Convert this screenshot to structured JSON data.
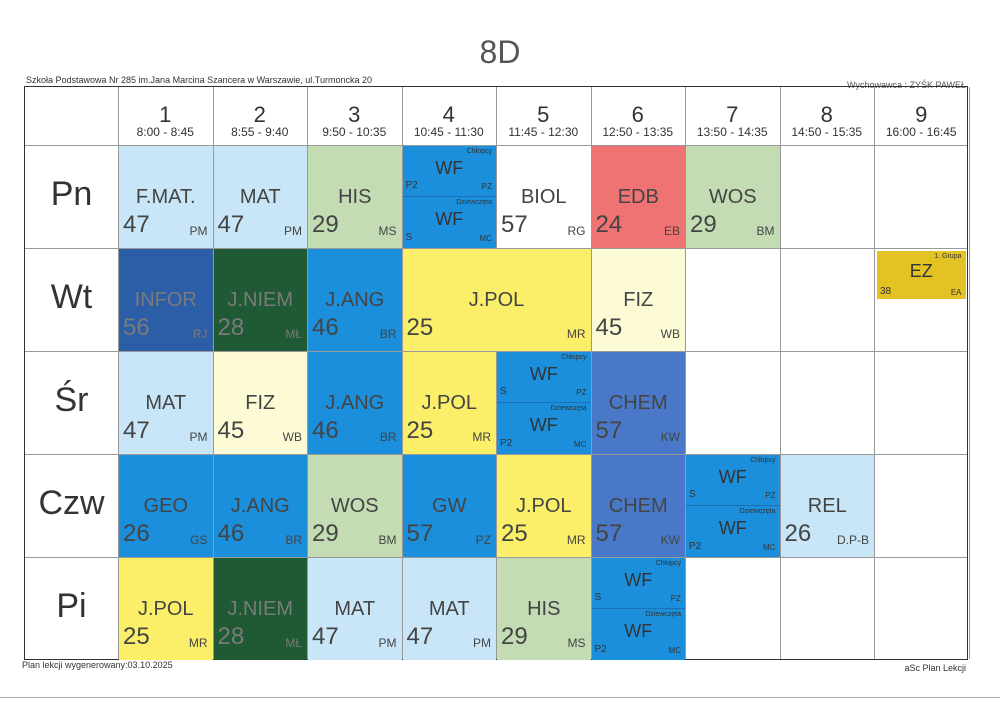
{
  "class_name": "8D",
  "school": "Szkoła Podstawowa Nr 285 im.Jana Marcina Szancera w Warszawie, ul.Turmoncka 20",
  "class_teacher": "Wychowawca : ZYŚK PAWEŁ",
  "footer_left": "Plan lekcji wygenerowany:03.10.2025",
  "footer_right": "aSc Plan Lekcji",
  "periods": [
    {
      "num": "1",
      "time": "8:00 - 8:45"
    },
    {
      "num": "2",
      "time": "8:55 - 9:40"
    },
    {
      "num": "3",
      "time": "9:50 - 10:35"
    },
    {
      "num": "4",
      "time": "10:45 - 11:30"
    },
    {
      "num": "5",
      "time": "11:45 - 12:30"
    },
    {
      "num": "6",
      "time": "12:50 - 13:35"
    },
    {
      "num": "7",
      "time": "13:50 - 14:35"
    },
    {
      "num": "8",
      "time": "14:50 - 15:35"
    },
    {
      "num": "9",
      "time": "16:00 - 16:45"
    }
  ],
  "days": [
    "Pn",
    "Wt",
    "Śr",
    "Czw",
    "Pi"
  ],
  "colors": {
    "light_blue": "#c8e6f7",
    "blue": "#1b8fdc",
    "dark_blue": "#2c5ea8",
    "mid_blue": "#4a78c8",
    "light_green": "#c3dcb4",
    "dark_green": "#1f5a35",
    "yellow": "#fbef6a",
    "cream": "#fdfbd6",
    "red": "#ef7373",
    "gold": "#e3c224",
    "white": "#ffffff"
  },
  "lessons": [
    {
      "day": 0,
      "start": 0,
      "span": 1,
      "subject": "F.MAT.",
      "room": "47",
      "teacher": "PM",
      "color": "light_blue"
    },
    {
      "day": 0,
      "start": 1,
      "span": 1,
      "subject": "MAT",
      "room": "47",
      "teacher": "PM",
      "color": "light_blue"
    },
    {
      "day": 0,
      "start": 2,
      "span": 1,
      "subject": "HIS",
      "room": "29",
      "teacher": "MS",
      "color": "light_green"
    },
    {
      "day": 0,
      "start": 3,
      "span": 1,
      "split": true,
      "color": "blue",
      "top": {
        "subject": "WF",
        "group": "Chłopcy",
        "room": "P2",
        "teacher": "PZ"
      },
      "bottom": {
        "subject": "WF",
        "group": "Dziewczęta",
        "room": "S",
        "teacher": "MC"
      }
    },
    {
      "day": 0,
      "start": 4,
      "span": 1,
      "subject": "BIOL",
      "room": "57",
      "teacher": "RG",
      "color": "white"
    },
    {
      "day": 0,
      "start": 5,
      "span": 1,
      "subject": "EDB",
      "room": "24",
      "teacher": "EB",
      "color": "red"
    },
    {
      "day": 0,
      "start": 6,
      "span": 1,
      "subject": "WOS",
      "room": "29",
      "teacher": "BM",
      "color": "light_green"
    },
    {
      "day": 1,
      "start": 0,
      "span": 1,
      "subject": "INFOR",
      "room": "56",
      "teacher": "RJ",
      "color": "dark_blue"
    },
    {
      "day": 1,
      "start": 1,
      "span": 1,
      "subject": "J.NIEM",
      "room": "28",
      "teacher": "MŁ",
      "color": "dark_green"
    },
    {
      "day": 1,
      "start": 2,
      "span": 1,
      "subject": "J.ANG",
      "room": "46",
      "teacher": "BR",
      "color": "blue"
    },
    {
      "day": 1,
      "start": 3,
      "span": 2,
      "subject": "J.POL",
      "room": "25",
      "teacher": "MR",
      "color": "yellow"
    },
    {
      "day": 1,
      "start": 5,
      "span": 1,
      "subject": "FIZ",
      "room": "45",
      "teacher": "WB",
      "color": "cream"
    },
    {
      "day": 1,
      "start": 8,
      "span": 1,
      "small": true,
      "subject": "EZ",
      "group": "1. Grupa",
      "room": "38",
      "teacher": "EA",
      "color": "gold"
    },
    {
      "day": 2,
      "start": 0,
      "span": 1,
      "subject": "MAT",
      "room": "47",
      "teacher": "PM",
      "color": "light_blue"
    },
    {
      "day": 2,
      "start": 1,
      "span": 1,
      "subject": "FIZ",
      "room": "45",
      "teacher": "WB",
      "color": "cream"
    },
    {
      "day": 2,
      "start": 2,
      "span": 1,
      "subject": "J.ANG",
      "room": "46",
      "teacher": "BR",
      "color": "blue"
    },
    {
      "day": 2,
      "start": 3,
      "span": 1,
      "subject": "J.POL",
      "room": "25",
      "teacher": "MR",
      "color": "yellow"
    },
    {
      "day": 2,
      "start": 4,
      "span": 1,
      "split": true,
      "color": "blue",
      "top": {
        "subject": "WF",
        "group": "Chłopcy",
        "room": "S",
        "teacher": "PZ"
      },
      "bottom": {
        "subject": "WF",
        "group": "Dziewczęta",
        "room": "P2",
        "teacher": "MC"
      }
    },
    {
      "day": 2,
      "start": 5,
      "span": 1,
      "subject": "CHEM",
      "room": "57",
      "teacher": "KW",
      "color": "mid_blue"
    },
    {
      "day": 3,
      "start": 0,
      "span": 1,
      "subject": "GEO",
      "room": "26",
      "teacher": "GS",
      "color": "blue"
    },
    {
      "day": 3,
      "start": 1,
      "span": 1,
      "subject": "J.ANG",
      "room": "46",
      "teacher": "BR",
      "color": "blue"
    },
    {
      "day": 3,
      "start": 2,
      "span": 1,
      "subject": "WOS",
      "room": "29",
      "teacher": "BM",
      "color": "light_green"
    },
    {
      "day": 3,
      "start": 3,
      "span": 1,
      "subject": "GW",
      "room": "57",
      "teacher": "PZ",
      "color": "blue"
    },
    {
      "day": 3,
      "start": 4,
      "span": 1,
      "subject": "J.POL",
      "room": "25",
      "teacher": "MR",
      "color": "yellow"
    },
    {
      "day": 3,
      "start": 5,
      "span": 1,
      "subject": "CHEM",
      "room": "57",
      "teacher": "KW",
      "color": "mid_blue"
    },
    {
      "day": 3,
      "start": 6,
      "span": 1,
      "split": true,
      "color": "blue",
      "top": {
        "subject": "WF",
        "group": "Chłopcy",
        "room": "S",
        "teacher": "PZ"
      },
      "bottom": {
        "subject": "WF",
        "group": "Dziewczęta",
        "room": "P2",
        "teacher": "MC"
      }
    },
    {
      "day": 3,
      "start": 7,
      "span": 1,
      "subject": "REL",
      "room": "26",
      "teacher": "D.P-B",
      "color": "light_blue"
    },
    {
      "day": 4,
      "start": 0,
      "span": 1,
      "subject": "J.POL",
      "room": "25",
      "teacher": "MR",
      "color": "yellow"
    },
    {
      "day": 4,
      "start": 1,
      "span": 1,
      "subject": "J.NIEM",
      "room": "28",
      "teacher": "MŁ",
      "color": "dark_green"
    },
    {
      "day": 4,
      "start": 2,
      "span": 1,
      "subject": "MAT",
      "room": "47",
      "teacher": "PM",
      "color": "light_blue"
    },
    {
      "day": 4,
      "start": 3,
      "span": 1,
      "subject": "MAT",
      "room": "47",
      "teacher": "PM",
      "color": "light_blue"
    },
    {
      "day": 4,
      "start": 4,
      "span": 1,
      "subject": "HIS",
      "room": "29",
      "teacher": "MS",
      "color": "light_green"
    },
    {
      "day": 4,
      "start": 5,
      "span": 1,
      "split": true,
      "color": "blue",
      "top": {
        "subject": "WF",
        "group": "Chłopcy",
        "room": "S",
        "teacher": "PZ"
      },
      "bottom": {
        "subject": "WF",
        "group": "Dziewczęta",
        "room": "P2",
        "teacher": "MC"
      }
    }
  ]
}
